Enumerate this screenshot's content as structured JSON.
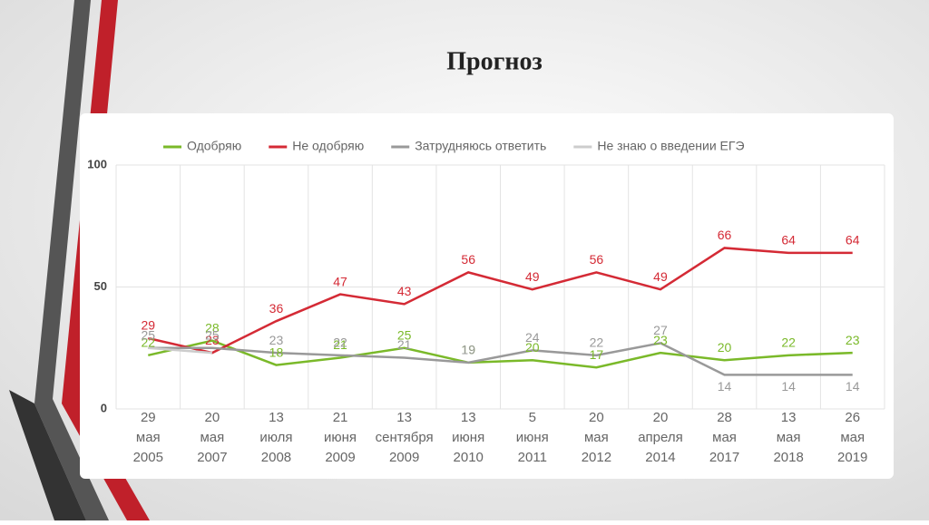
{
  "slide_title": "Прогноз",
  "chart_data": {
    "type": "line",
    "categories": [
      [
        "29",
        "мая",
        "2005"
      ],
      [
        "20",
        "мая",
        "2007"
      ],
      [
        "13",
        "июля",
        "2008"
      ],
      [
        "21",
        "июня",
        "2009"
      ],
      [
        "13",
        "сентября",
        "2009"
      ],
      [
        "13",
        "июня",
        "2010"
      ],
      [
        "5",
        "июня",
        "2011"
      ],
      [
        "20",
        "мая",
        "2012"
      ],
      [
        "20",
        "апреля",
        "2014"
      ],
      [
        "28",
        "мая",
        "2017"
      ],
      [
        "13",
        "мая",
        "2018"
      ],
      [
        "26",
        "мая",
        "2019"
      ]
    ],
    "series": [
      {
        "name": "Одобряю",
        "color": "#7ab929",
        "values": [
          22,
          28,
          18,
          21,
          25,
          19,
          20,
          17,
          23,
          20,
          22,
          23
        ]
      },
      {
        "name": "Не одобряю",
        "color": "#d42a35",
        "values": [
          29,
          23,
          36,
          47,
          43,
          56,
          49,
          56,
          49,
          66,
          64,
          64
        ]
      },
      {
        "name": "Затрудняюсь ответить",
        "color": "#999999",
        "values": [
          25,
          25,
          23,
          22,
          21,
          19,
          24,
          22,
          27,
          14,
          14,
          14
        ]
      },
      {
        "name": "Не знаю о введении ЕГЭ",
        "color": "#cccccc",
        "values": [
          25,
          23,
          null,
          null,
          null,
          null,
          null,
          null,
          null,
          null,
          null,
          null
        ]
      }
    ],
    "ylim": [
      0,
      100
    ],
    "yticks": [
      0,
      50,
      100
    ],
    "grid": true
  }
}
